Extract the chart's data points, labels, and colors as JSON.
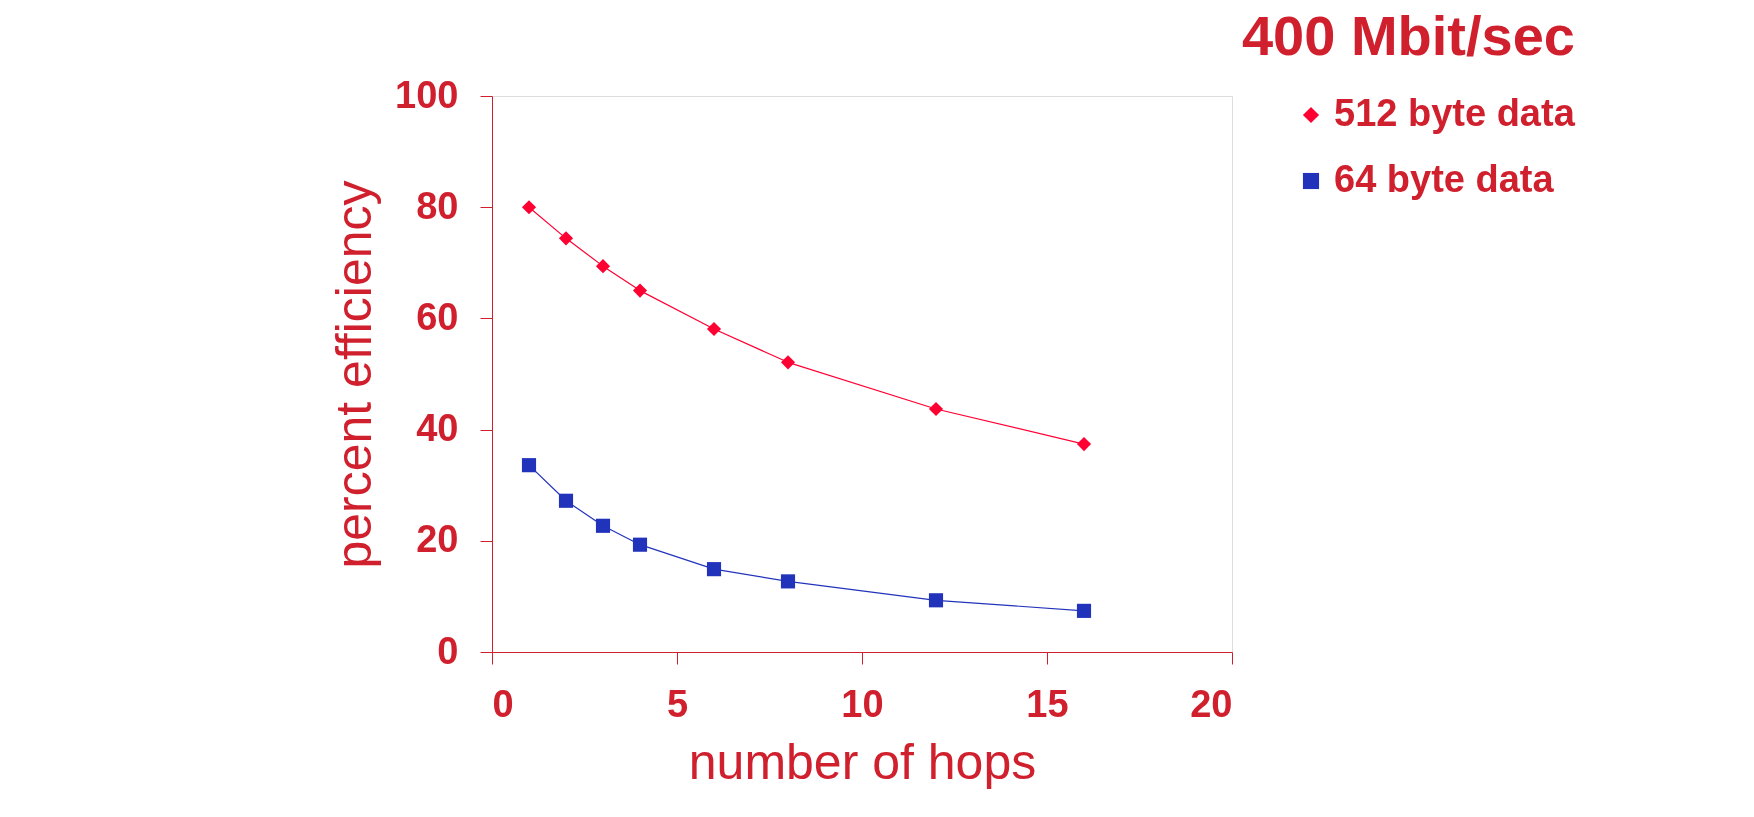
{
  "chart_data": {
    "type": "line",
    "title": "400 Mbit/sec",
    "xlabel": "number of hops",
    "ylabel": "percent efficiency",
    "x": [
      1,
      2,
      3,
      4,
      6,
      8,
      12,
      16
    ],
    "series": [
      {
        "name": "512 byte data",
        "color": "#ff0033",
        "marker": "diamond",
        "values": [
          80,
          74.4,
          69.4,
          65,
          58.1,
          52.1,
          43.7,
          37.4
        ]
      },
      {
        "name": "64 byte data",
        "color": "#2233bb",
        "marker": "square",
        "values": [
          33.6,
          27.2,
          22.7,
          19.3,
          14.9,
          12.7,
          9.3,
          7.4
        ]
      }
    ],
    "xlim": [
      0,
      20
    ],
    "xticks": [
      0,
      5,
      10,
      15,
      20
    ],
    "ylim": [
      0,
      100
    ],
    "yticks": [
      0,
      20,
      40,
      60,
      80,
      100
    ],
    "grid": false,
    "legend": "right",
    "line_style": "solid"
  }
}
